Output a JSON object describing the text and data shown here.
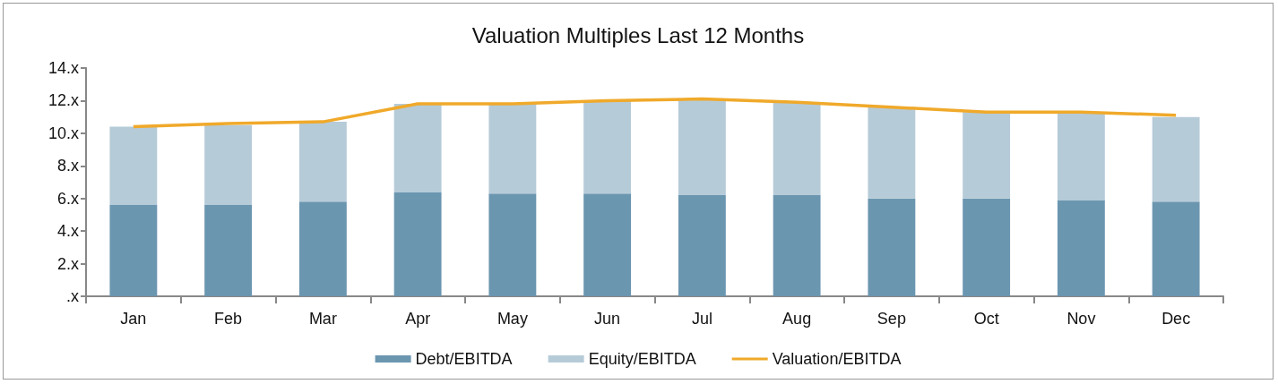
{
  "chart_data": {
    "type": "bar",
    "title": "Valuation Multiples Last 12 Months",
    "stacked": true,
    "grid": false,
    "legend": "bottom",
    "marker": "none",
    "categories": [
      "Jan",
      "Feb",
      "Mar",
      "Apr",
      "May",
      "Jun",
      "Jul",
      "Aug",
      "Sep",
      "Oct",
      "Nov",
      "Dec"
    ],
    "ylim": [
      0,
      14
    ],
    "yticks": [
      {
        "value": 0,
        "label": ".x"
      },
      {
        "value": 2,
        "label": "2.x"
      },
      {
        "value": 4,
        "label": "4.x"
      },
      {
        "value": 6,
        "label": "6.x"
      },
      {
        "value": 8,
        "label": "8.x"
      },
      {
        "value": 10,
        "label": "10.x"
      },
      {
        "value": 12,
        "label": "12.x"
      },
      {
        "value": 14,
        "label": "14.x"
      }
    ],
    "series": [
      {
        "name": "Debt/EBITDA",
        "color": "#6b96b0",
        "values": [
          5.6,
          5.6,
          5.8,
          6.4,
          6.3,
          6.3,
          6.2,
          6.2,
          6.0,
          6.0,
          5.9,
          5.8
        ]
      },
      {
        "name": "Equity/EBITDA",
        "color": "#b6cbd8",
        "values": [
          4.8,
          4.9,
          4.9,
          5.4,
          5.5,
          5.7,
          5.9,
          5.7,
          5.6,
          5.3,
          5.3,
          5.2
        ]
      },
      {
        "name": "Valuation/EBITDA",
        "type": "line",
        "color": "#f0a92a",
        "values": [
          10.4,
          10.6,
          10.7,
          11.8,
          11.8,
          12.0,
          12.1,
          11.9,
          11.6,
          11.3,
          11.3,
          11.1
        ]
      }
    ]
  }
}
